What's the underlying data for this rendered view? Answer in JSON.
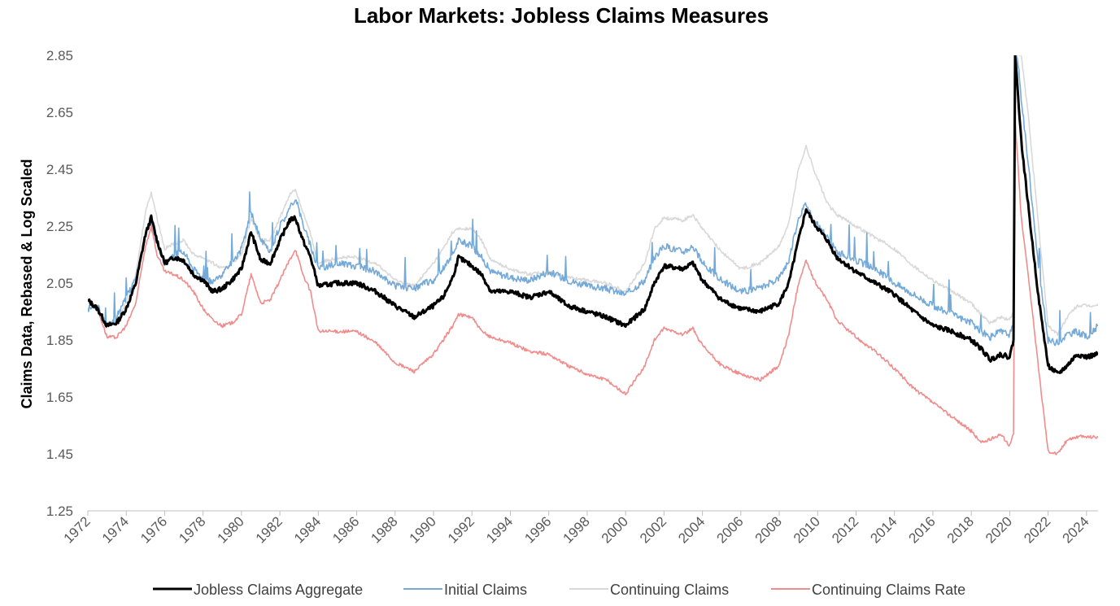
{
  "chart_data": {
    "type": "line",
    "title": "Labor Markets: Jobless Claims Measures",
    "xlabel": "",
    "ylabel": "Claims Data, Rebased & Log Scaled",
    "xlim": [
      1972,
      2024.6
    ],
    "ylim": [
      1.25,
      2.85
    ],
    "y_ticks": [
      "1.25",
      "1.45",
      "1.65",
      "1.85",
      "2.05",
      "2.25",
      "2.45",
      "2.65",
      "2.85"
    ],
    "x_ticks": [
      "1972",
      "1974",
      "1976",
      "1978",
      "1980",
      "1982",
      "1984",
      "1986",
      "1988",
      "1990",
      "1992",
      "1994",
      "1996",
      "1998",
      "2000",
      "2002",
      "2004",
      "2006",
      "2008",
      "2010",
      "2012",
      "2014",
      "2016",
      "2018",
      "2020",
      "2022",
      "2024"
    ],
    "grid": false,
    "legend_position": "bottom",
    "series": [
      {
        "name": "Jobless Claims Aggregate",
        "color": "#000000",
        "x": [
          1972.0,
          1972.5,
          1973.0,
          1973.5,
          1974.0,
          1974.5,
          1975.0,
          1975.3,
          1975.6,
          1976.0,
          1976.5,
          1977.0,
          1977.5,
          1978.0,
          1978.5,
          1979.0,
          1979.5,
          1980.0,
          1980.5,
          1981.0,
          1981.5,
          1982.0,
          1982.5,
          1982.8,
          1983.2,
          1983.6,
          1984.0,
          1985.0,
          1986.0,
          1987.0,
          1988.0,
          1989.0,
          1989.5,
          1990.0,
          1990.5,
          1991.0,
          1991.3,
          1992.0,
          1992.5,
          1993.0,
          1994.0,
          1995.0,
          1996.0,
          1997.0,
          1998.0,
          1999.0,
          2000.0,
          2001.0,
          2001.5,
          2002.0,
          2003.0,
          2003.5,
          2004.0,
          2005.0,
          2006.0,
          2007.0,
          2008.0,
          2008.5,
          2009.0,
          2009.4,
          2009.8,
          2010.5,
          2011.0,
          2012.0,
          2013.0,
          2014.0,
          2015.0,
          2016.0,
          2017.0,
          2018.0,
          2018.5,
          2019.0,
          2019.5,
          2020.0,
          2020.2,
          2020.28,
          2020.4,
          2020.6,
          2021.0,
          2021.5,
          2022.0,
          2022.5,
          2023.0,
          2023.5,
          2024.0,
          2024.6
        ],
        "values": [
          1.99,
          1.96,
          1.9,
          1.91,
          1.96,
          2.05,
          2.22,
          2.28,
          2.2,
          2.12,
          2.14,
          2.13,
          2.08,
          2.06,
          2.02,
          2.03,
          2.06,
          2.1,
          2.23,
          2.13,
          2.12,
          2.2,
          2.27,
          2.28,
          2.2,
          2.14,
          2.04,
          2.05,
          2.05,
          2.02,
          1.97,
          1.93,
          1.95,
          1.97,
          2.0,
          2.07,
          2.14,
          2.11,
          2.08,
          2.02,
          2.02,
          2.0,
          2.02,
          1.97,
          1.95,
          1.93,
          1.9,
          1.96,
          2.05,
          2.11,
          2.1,
          2.12,
          2.06,
          1.99,
          1.96,
          1.95,
          1.98,
          2.05,
          2.2,
          2.31,
          2.26,
          2.2,
          2.14,
          2.09,
          2.05,
          2.01,
          1.95,
          1.9,
          1.88,
          1.85,
          1.82,
          1.78,
          1.8,
          1.79,
          1.85,
          2.85,
          2.75,
          2.55,
          2.3,
          2.0,
          1.76,
          1.73,
          1.76,
          1.8,
          1.79,
          1.8
        ]
      },
      {
        "name": "Initial Claims",
        "color": "#74a9d8",
        "x": [
          1972.0,
          1972.5,
          1973.0,
          1973.5,
          1974.0,
          1974.5,
          1975.0,
          1975.3,
          1975.6,
          1976.0,
          1976.5,
          1977.0,
          1977.5,
          1978.0,
          1978.5,
          1979.0,
          1979.5,
          1980.0,
          1980.5,
          1981.0,
          1981.5,
          1982.0,
          1982.5,
          1982.8,
          1983.2,
          1983.6,
          1984.0,
          1985.0,
          1986.0,
          1987.0,
          1988.0,
          1989.0,
          1989.5,
          1990.0,
          1990.5,
          1991.0,
          1991.3,
          1992.0,
          1992.5,
          1993.0,
          1994.0,
          1995.0,
          1996.0,
          1997.0,
          1998.0,
          1999.0,
          2000.0,
          2001.0,
          2001.5,
          2002.0,
          2003.0,
          2003.5,
          2004.0,
          2005.0,
          2006.0,
          2007.0,
          2008.0,
          2008.5,
          2009.0,
          2009.4,
          2009.8,
          2010.5,
          2011.0,
          2012.0,
          2013.0,
          2014.0,
          2015.0,
          2016.0,
          2017.0,
          2018.0,
          2018.5,
          2019.0,
          2019.5,
          2020.0,
          2020.2,
          2020.28,
          2020.4,
          2020.6,
          2021.0,
          2021.5,
          2022.0,
          2022.5,
          2023.0,
          2023.5,
          2024.0,
          2024.6
        ],
        "values": [
          1.96,
          1.97,
          1.9,
          1.93,
          2.0,
          2.06,
          2.22,
          2.27,
          2.18,
          2.12,
          2.15,
          2.16,
          2.1,
          2.07,
          2.05,
          2.08,
          2.12,
          2.17,
          2.3,
          2.2,
          2.16,
          2.25,
          2.31,
          2.35,
          2.26,
          2.18,
          2.1,
          2.12,
          2.11,
          2.09,
          2.04,
          2.03,
          2.05,
          2.06,
          2.1,
          2.15,
          2.2,
          2.18,
          2.14,
          2.09,
          2.07,
          2.06,
          2.09,
          2.06,
          2.04,
          2.03,
          2.01,
          2.06,
          2.14,
          2.18,
          2.16,
          2.18,
          2.12,
          2.06,
          2.02,
          2.03,
          2.07,
          2.13,
          2.28,
          2.33,
          2.27,
          2.21,
          2.16,
          2.13,
          2.1,
          2.05,
          2.01,
          1.97,
          1.94,
          1.91,
          1.88,
          1.86,
          1.88,
          1.87,
          1.9,
          2.85,
          2.85,
          2.7,
          2.45,
          2.1,
          1.85,
          1.84,
          1.87,
          1.88,
          1.86,
          1.9
        ]
      },
      {
        "name": "Continuing Claims",
        "color": "#d9d9d9",
        "x": [
          1972.0,
          1972.5,
          1973.0,
          1973.5,
          1974.0,
          1974.5,
          1975.0,
          1975.3,
          1975.6,
          1976.0,
          1976.5,
          1977.0,
          1977.5,
          1978.0,
          1978.5,
          1979.0,
          1979.5,
          1980.0,
          1980.5,
          1981.0,
          1981.5,
          1982.0,
          1982.5,
          1982.8,
          1983.2,
          1983.6,
          1984.0,
          1985.0,
          1986.0,
          1987.0,
          1988.0,
          1989.0,
          1989.5,
          1990.0,
          1990.5,
          1991.0,
          1991.3,
          1992.0,
          1992.5,
          1993.0,
          1994.0,
          1995.0,
          1996.0,
          1997.0,
          1998.0,
          1999.0,
          2000.0,
          2001.0,
          2001.5,
          2002.0,
          2003.0,
          2003.5,
          2004.0,
          2005.0,
          2006.0,
          2007.0,
          2008.0,
          2008.5,
          2009.0,
          2009.4,
          2009.8,
          2010.5,
          2011.0,
          2012.0,
          2013.0,
          2014.0,
          2015.0,
          2016.0,
          2017.0,
          2018.0,
          2018.5,
          2019.0,
          2019.5,
          2020.0,
          2020.2,
          2020.28,
          2020.4,
          2020.6,
          2021.0,
          2021.5,
          2022.0,
          2022.5,
          2023.0,
          2023.5,
          2024.0,
          2024.6
        ],
        "values": [
          1.99,
          1.96,
          1.9,
          1.92,
          1.98,
          2.08,
          2.3,
          2.37,
          2.28,
          2.17,
          2.19,
          2.2,
          2.15,
          2.14,
          2.12,
          2.1,
          2.12,
          2.15,
          2.28,
          2.2,
          2.2,
          2.28,
          2.36,
          2.38,
          2.3,
          2.22,
          2.12,
          2.14,
          2.14,
          2.12,
          2.06,
          2.04,
          2.08,
          2.12,
          2.17,
          2.23,
          2.24,
          2.24,
          2.2,
          2.13,
          2.1,
          2.08,
          2.09,
          2.07,
          2.06,
          2.05,
          2.02,
          2.12,
          2.24,
          2.28,
          2.27,
          2.29,
          2.24,
          2.16,
          2.1,
          2.12,
          2.18,
          2.26,
          2.45,
          2.53,
          2.45,
          2.33,
          2.29,
          2.25,
          2.21,
          2.17,
          2.11,
          2.06,
          2.02,
          1.98,
          1.94,
          1.91,
          1.93,
          1.92,
          1.95,
          2.85,
          2.85,
          2.85,
          2.62,
          2.25,
          1.9,
          1.87,
          1.93,
          1.97,
          1.97,
          1.97
        ]
      },
      {
        "name": "Continuing Claims Rate",
        "color": "#f08c8c",
        "x": [
          1972.0,
          1972.5,
          1973.0,
          1973.5,
          1974.0,
          1974.5,
          1975.0,
          1975.3,
          1975.6,
          1976.0,
          1976.5,
          1977.0,
          1977.5,
          1978.0,
          1978.5,
          1979.0,
          1979.5,
          1980.0,
          1980.5,
          1981.0,
          1981.5,
          1982.0,
          1982.5,
          1982.8,
          1983.2,
          1983.6,
          1984.0,
          1985.0,
          1986.0,
          1987.0,
          1988.0,
          1989.0,
          1989.5,
          1990.0,
          1990.5,
          1991.0,
          1991.3,
          1992.0,
          1992.5,
          1993.0,
          1994.0,
          1995.0,
          1996.0,
          1997.0,
          1998.0,
          1999.0,
          2000.0,
          2001.0,
          2001.5,
          2002.0,
          2003.0,
          2003.5,
          2004.0,
          2005.0,
          2006.0,
          2007.0,
          2008.0,
          2008.5,
          2009.0,
          2009.4,
          2009.8,
          2010.5,
          2011.0,
          2012.0,
          2013.0,
          2014.0,
          2015.0,
          2016.0,
          2017.0,
          2018.0,
          2018.5,
          2019.0,
          2019.5,
          2020.0,
          2020.2,
          2020.28,
          2020.4,
          2020.6,
          2021.0,
          2021.5,
          2022.0,
          2022.5,
          2023.0,
          2023.5,
          2024.0,
          2024.6
        ],
        "values": [
          1.99,
          1.96,
          1.86,
          1.86,
          1.9,
          1.98,
          2.18,
          2.25,
          2.15,
          2.09,
          2.08,
          2.06,
          2.02,
          1.96,
          1.92,
          1.9,
          1.91,
          1.94,
          2.08,
          1.98,
          1.99,
          2.06,
          2.13,
          2.17,
          2.08,
          2.02,
          1.88,
          1.88,
          1.88,
          1.84,
          1.77,
          1.74,
          1.77,
          1.8,
          1.85,
          1.9,
          1.94,
          1.93,
          1.88,
          1.86,
          1.84,
          1.81,
          1.8,
          1.76,
          1.73,
          1.71,
          1.66,
          1.76,
          1.85,
          1.89,
          1.87,
          1.89,
          1.83,
          1.76,
          1.73,
          1.71,
          1.76,
          1.87,
          2.05,
          2.13,
          2.06,
          1.99,
          1.92,
          1.86,
          1.81,
          1.75,
          1.68,
          1.63,
          1.58,
          1.53,
          1.49,
          1.5,
          1.52,
          1.48,
          1.52,
          2.63,
          2.5,
          2.28,
          2.06,
          1.75,
          1.46,
          1.45,
          1.5,
          1.51,
          1.51,
          1.51
        ]
      }
    ]
  }
}
